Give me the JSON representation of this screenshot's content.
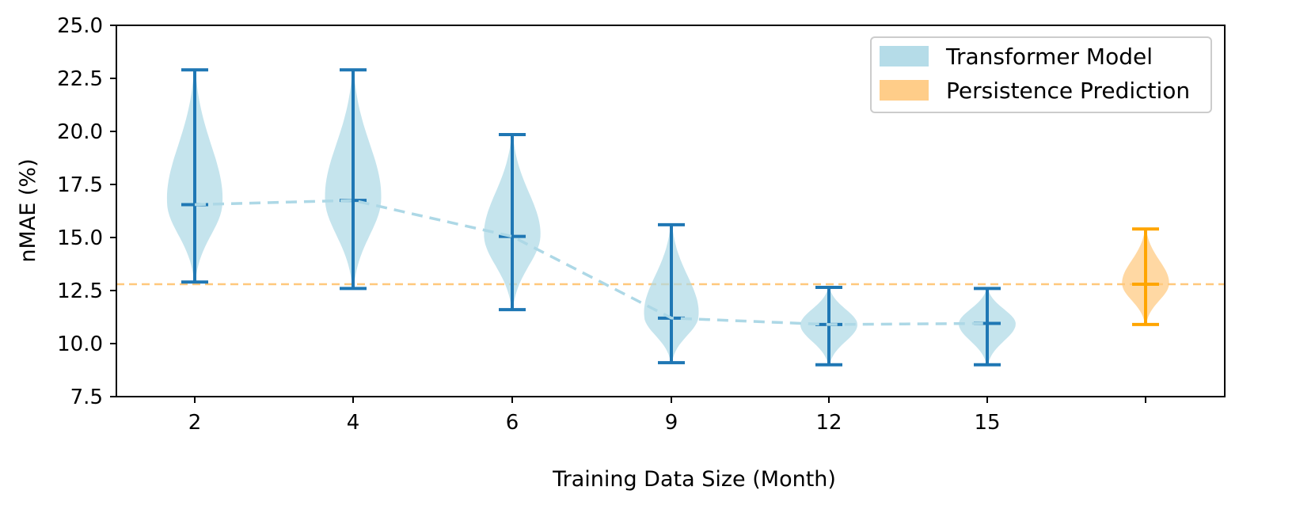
{
  "chart_data": {
    "type": "violin",
    "title": "",
    "xlabel": "Training Data Size (Month)",
    "ylabel": "nMAE (%)",
    "ylim": [
      7.5,
      25.0
    ],
    "yticks": [
      "7.5",
      "10.0",
      "12.5",
      "15.0",
      "17.5",
      "20.0",
      "22.5",
      "25.0"
    ],
    "categories": [
      "2",
      "4",
      "6",
      "9",
      "12",
      "15"
    ],
    "grid": false,
    "legend_placement": "top-right",
    "series": [
      {
        "name": "Transformer Model",
        "face_color": "#add8e6",
        "line_color": "#1f77b4",
        "violins": [
          {
            "x": "2",
            "min": 12.9,
            "max": 22.9,
            "median": 16.55
          },
          {
            "x": "4",
            "min": 12.6,
            "max": 22.9,
            "median": 16.75
          },
          {
            "x": "6",
            "min": 11.6,
            "max": 19.85,
            "median": 15.05
          },
          {
            "x": "9",
            "min": 9.1,
            "max": 15.6,
            "median": 11.2
          },
          {
            "x": "12",
            "min": 9.0,
            "max": 12.65,
            "median": 10.9
          },
          {
            "x": "15",
            "min": 9.0,
            "max": 12.6,
            "median": 10.95
          }
        ],
        "trend_line": [
          16.55,
          16.75,
          15.05,
          11.2,
          10.9,
          10.95
        ]
      },
      {
        "name": "Persistence Prediction",
        "face_color": "#ffc87c",
        "line_color": "#ffa500",
        "violins": [
          {
            "x": "",
            "min": 10.9,
            "max": 15.4,
            "median": 12.8
          }
        ],
        "reference_line": 12.8
      }
    ]
  }
}
